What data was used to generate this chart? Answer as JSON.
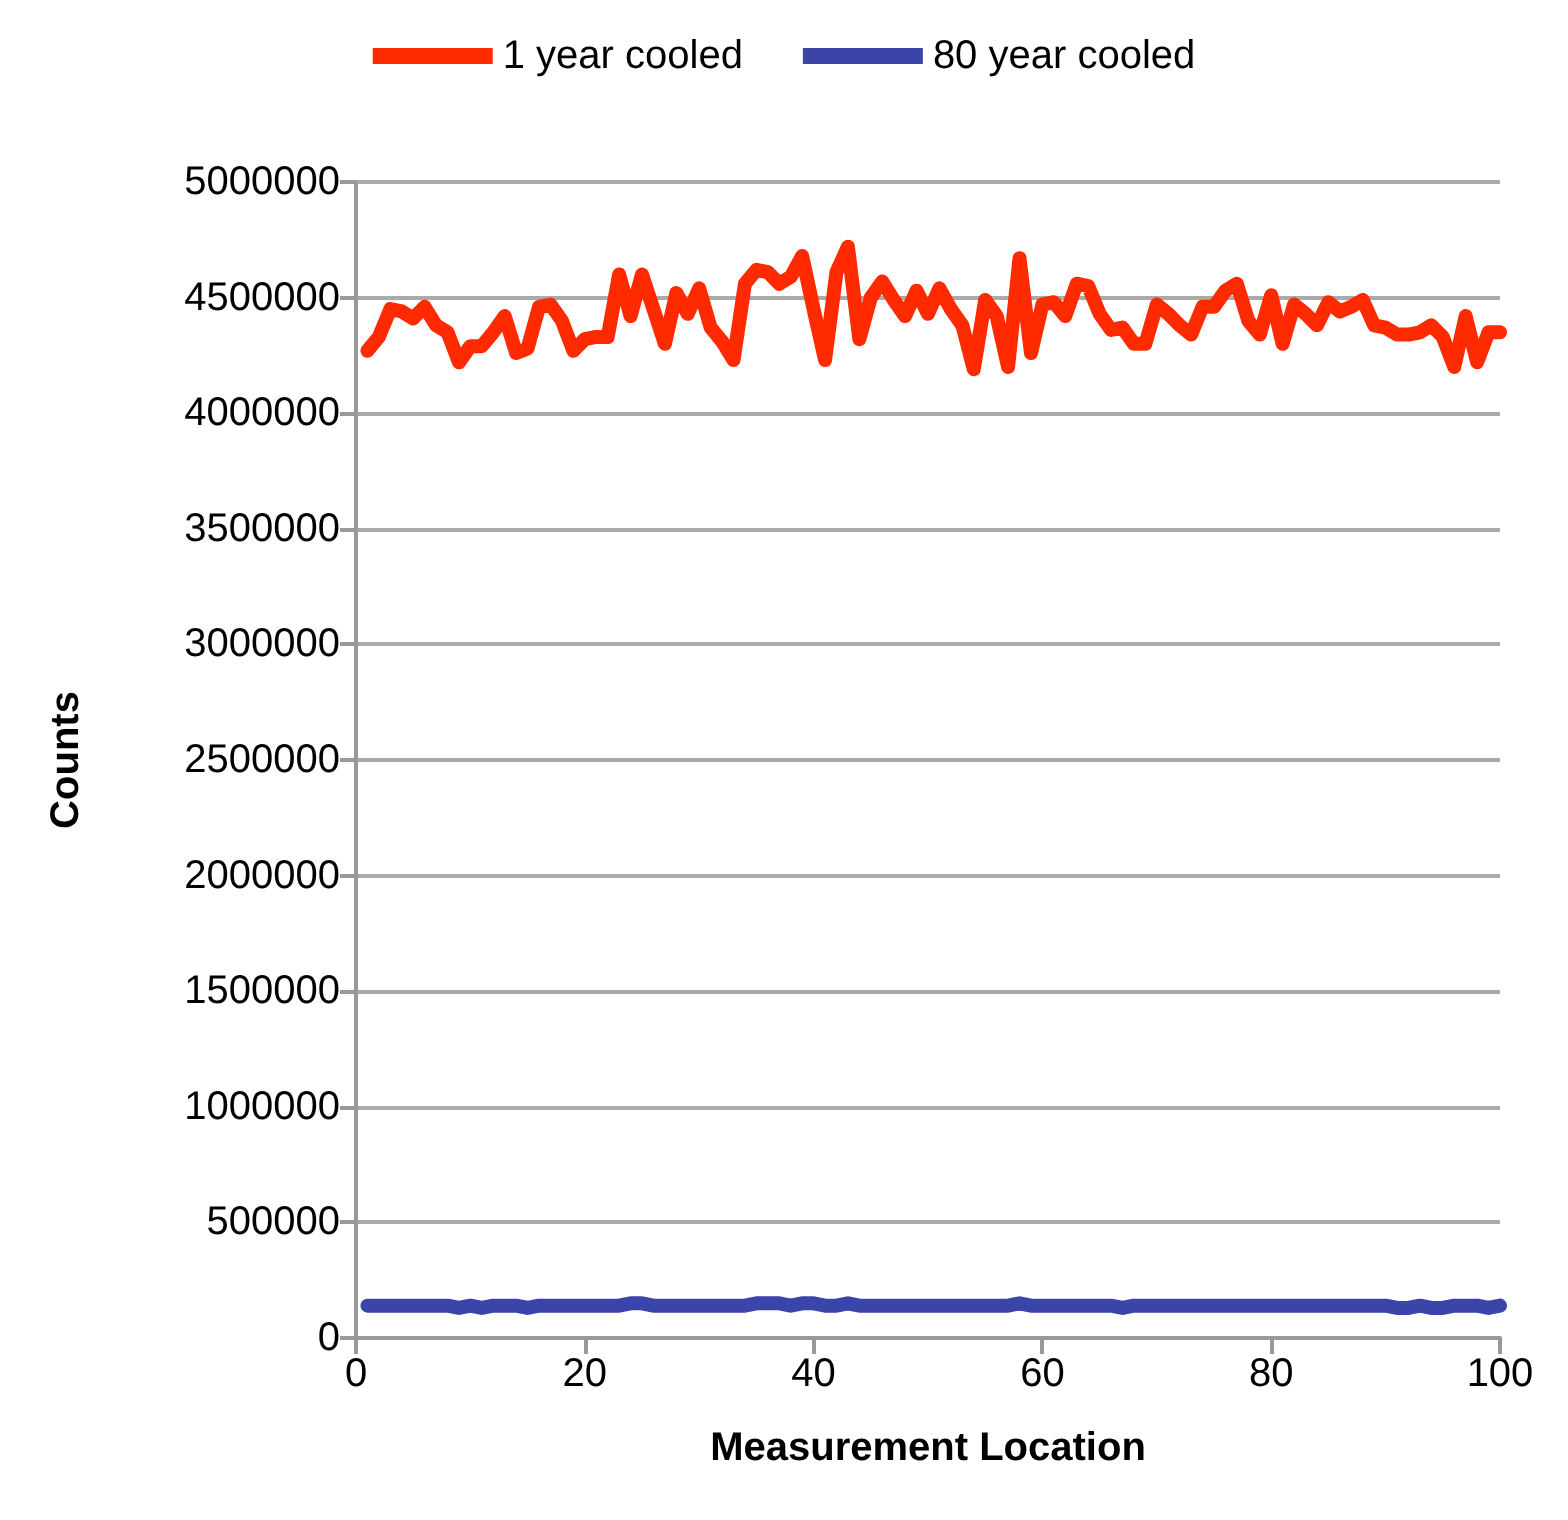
{
  "chart_data": {
    "type": "line",
    "xlabel": "Measurement Location",
    "ylabel": "Counts",
    "x": [
      1,
      2,
      3,
      4,
      5,
      6,
      7,
      8,
      9,
      10,
      11,
      12,
      13,
      14,
      15,
      16,
      17,
      18,
      19,
      20,
      21,
      22,
      23,
      24,
      25,
      26,
      27,
      28,
      29,
      30,
      31,
      32,
      33,
      34,
      35,
      36,
      37,
      38,
      39,
      40,
      41,
      42,
      43,
      44,
      45,
      46,
      47,
      48,
      49,
      50,
      51,
      52,
      53,
      54,
      55,
      56,
      57,
      58,
      59,
      60,
      61,
      62,
      63,
      64,
      65,
      66,
      67,
      68,
      69,
      70,
      71,
      72,
      73,
      74,
      75,
      76,
      77,
      78,
      79,
      80,
      81,
      82,
      83,
      84,
      85,
      86,
      87,
      88,
      89,
      90,
      91,
      92,
      93,
      94,
      95,
      96,
      97,
      98,
      99,
      100
    ],
    "series": [
      {
        "name": "1 year cooled",
        "color": "#ff2a00",
        "values": [
          4270000,
          4330000,
          4450000,
          4440000,
          4410000,
          4460000,
          4380000,
          4350000,
          4220000,
          4290000,
          4290000,
          4350000,
          4420000,
          4260000,
          4280000,
          4460000,
          4470000,
          4400000,
          4270000,
          4320000,
          4330000,
          4330000,
          4600000,
          4420000,
          4600000,
          4450000,
          4300000,
          4520000,
          4430000,
          4540000,
          4370000,
          4310000,
          4230000,
          4560000,
          4620000,
          4610000,
          4560000,
          4590000,
          4680000,
          4450000,
          4230000,
          4610000,
          4720000,
          4320000,
          4500000,
          4570000,
          4490000,
          4420000,
          4530000,
          4430000,
          4540000,
          4450000,
          4380000,
          4190000,
          4490000,
          4420000,
          4200000,
          4670000,
          4260000,
          4470000,
          4480000,
          4420000,
          4560000,
          4550000,
          4430000,
          4360000,
          4370000,
          4300000,
          4300000,
          4470000,
          4430000,
          4380000,
          4340000,
          4460000,
          4460000,
          4530000,
          4560000,
          4400000,
          4340000,
          4510000,
          4300000,
          4470000,
          4430000,
          4380000,
          4480000,
          4440000,
          4460000,
          4490000,
          4380000,
          4370000,
          4340000,
          4340000,
          4350000,
          4380000,
          4330000,
          4200000,
          4420000,
          4220000,
          4350000,
          4350000
        ]
      },
      {
        "name": "80 year cooled",
        "color": "#3b44a8",
        "values": [
          140000,
          140000,
          140000,
          140000,
          140000,
          140000,
          140000,
          140000,
          130000,
          140000,
          130000,
          140000,
          140000,
          140000,
          130000,
          140000,
          140000,
          140000,
          140000,
          140000,
          140000,
          140000,
          140000,
          150000,
          150000,
          140000,
          140000,
          140000,
          140000,
          140000,
          140000,
          140000,
          140000,
          140000,
          150000,
          150000,
          150000,
          140000,
          150000,
          150000,
          140000,
          140000,
          150000,
          140000,
          140000,
          140000,
          140000,
          140000,
          140000,
          140000,
          140000,
          140000,
          140000,
          140000,
          140000,
          140000,
          140000,
          150000,
          140000,
          140000,
          140000,
          140000,
          140000,
          140000,
          140000,
          140000,
          130000,
          140000,
          140000,
          140000,
          140000,
          140000,
          140000,
          140000,
          140000,
          140000,
          140000,
          140000,
          140000,
          140000,
          140000,
          140000,
          140000,
          140000,
          140000,
          140000,
          140000,
          140000,
          140000,
          140000,
          130000,
          130000,
          140000,
          130000,
          130000,
          140000,
          140000,
          140000,
          130000,
          140000
        ]
      }
    ],
    "xlim": [
      0,
      100
    ],
    "xticks": [
      0,
      20,
      40,
      60,
      80,
      100
    ],
    "ylim": [
      0,
      5000000
    ],
    "yticks": [
      0,
      500000,
      1000000,
      1500000,
      2000000,
      2500000,
      3000000,
      3500000,
      4000000,
      4500000,
      5000000
    ],
    "grid": "y",
    "legend": "top",
    "line_style": "solid"
  }
}
